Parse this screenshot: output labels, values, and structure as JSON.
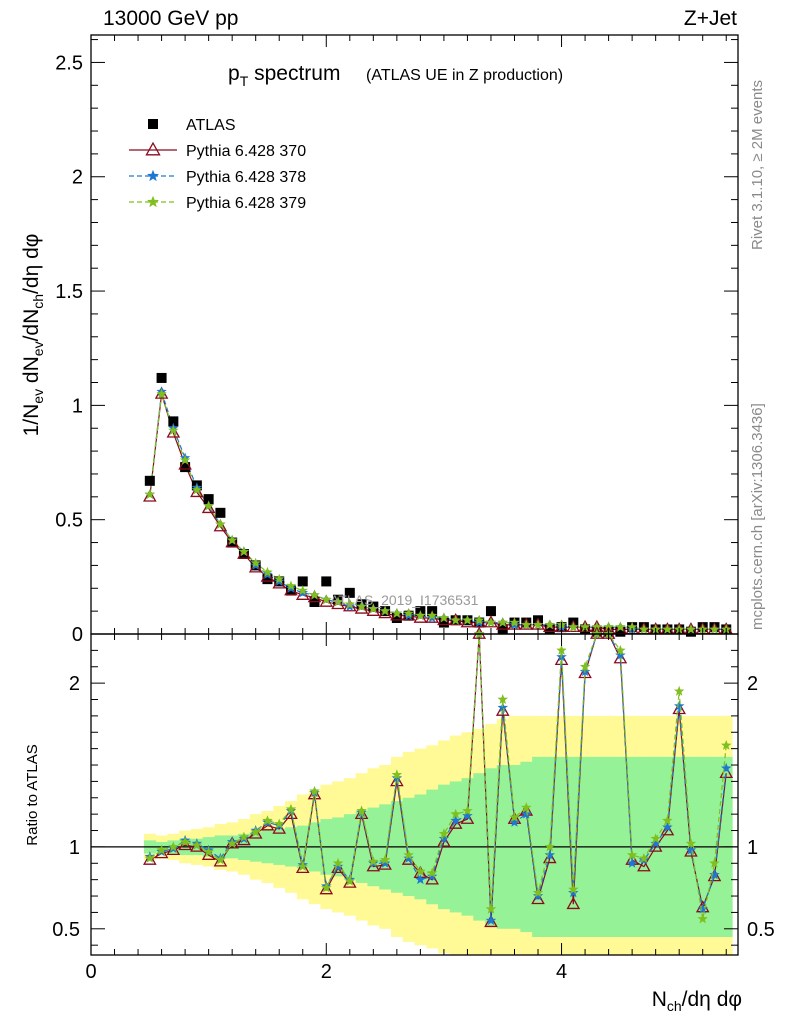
{
  "header": {
    "left": "13000 GeV pp",
    "right": "Z+Jet"
  },
  "plot_title": {
    "main_base": "p",
    "main_sub": "T",
    "main_rest": " spectrum",
    "paren": "(ATLAS UE in Z production)"
  },
  "side_text": {
    "top": "Rivet 3.1.10, ≥ 2M events",
    "bottom": "mcplots.cern.ch [arXiv:1306.3436]"
  },
  "watermark": "ATLAS_2019_I1736531",
  "axes": {
    "ylabel_main": "1/N_ev dN_ev/dN_ch/dη dφ",
    "ylabel_ratio": "Ratio to ATLAS",
    "xlabel": "N_ch/dη dφ"
  },
  "legend": [
    {
      "label": "ATLAS",
      "color": "#000000",
      "marker": "square"
    },
    {
      "label": "Pythia 6.428 370",
      "color": "#8b0a1e",
      "marker": "triangle",
      "dash": "solid"
    },
    {
      "label": "Pythia 6.428 378",
      "color": "#1f77d4",
      "marker": "star",
      "dash": "dashed"
    },
    {
      "label": "Pythia 6.428 379",
      "color": "#7fbf1e",
      "marker": "star",
      "dash": "dashed"
    }
  ],
  "chart_data": [
    {
      "type": "scatter",
      "panel": "main",
      "xlim": [
        0,
        5.5
      ],
      "ylim": [
        0,
        2.62
      ],
      "x_ticks": [
        0,
        2,
        4
      ],
      "y_ticks": [
        0,
        0.5,
        1,
        1.5,
        2,
        2.5
      ],
      "x": [
        0.5,
        0.6,
        0.7,
        0.8,
        0.9,
        1.0,
        1.1,
        1.2,
        1.3,
        1.4,
        1.5,
        1.6,
        1.7,
        1.8,
        1.9,
        2.0,
        2.1,
        2.2,
        2.3,
        2.4,
        2.5,
        2.6,
        2.7,
        2.8,
        2.9,
        3.0,
        3.1,
        3.2,
        3.3,
        3.4,
        3.5,
        3.6,
        3.7,
        3.8,
        3.9,
        4.0,
        4.1,
        4.2,
        4.3,
        4.4,
        4.5,
        4.6,
        4.7,
        4.8,
        4.9,
        5.0,
        5.1,
        5.2,
        5.3,
        5.4
      ],
      "series": [
        {
          "name": "ATLAS",
          "values": [
            0.67,
            1.12,
            0.93,
            0.73,
            0.65,
            0.59,
            0.53,
            0.4,
            0.35,
            0.3,
            0.24,
            0.23,
            0.19,
            0.23,
            0.14,
            0.23,
            0.15,
            0.18,
            0.13,
            0.12,
            0.1,
            0.07,
            0.08,
            0.1,
            0.1,
            0.05,
            0.06,
            0.06,
            0.05,
            0.1,
            0.02,
            0.05,
            0.05,
            0.06,
            0.02,
            0.03,
            0.05,
            0.02,
            0.01,
            0.01,
            0.01,
            0.03,
            0.03,
            0.02,
            0.02,
            0.02,
            0.01,
            0.03,
            0.03,
            0.02
          ]
        },
        {
          "name": "Pythia 6.428 370",
          "values": [
            0.6,
            1.05,
            0.88,
            0.74,
            0.62,
            0.55,
            0.47,
            0.4,
            0.35,
            0.29,
            0.25,
            0.22,
            0.19,
            0.17,
            0.16,
            0.14,
            0.13,
            0.12,
            0.11,
            0.1,
            0.09,
            0.08,
            0.08,
            0.07,
            0.07,
            0.06,
            0.06,
            0.05,
            0.05,
            0.05,
            0.04,
            0.04,
            0.04,
            0.04,
            0.03,
            0.03,
            0.03,
            0.03,
            0.03,
            0.02,
            0.02,
            0.02,
            0.02,
            0.02,
            0.02,
            0.02,
            0.02,
            0.02,
            0.02,
            0.02
          ]
        },
        {
          "name": "Pythia 6.428 378",
          "values": [
            0.61,
            1.06,
            0.9,
            0.77,
            0.64,
            0.56,
            0.48,
            0.41,
            0.36,
            0.3,
            0.26,
            0.23,
            0.2,
            0.18,
            0.17,
            0.15,
            0.14,
            0.12,
            0.12,
            0.11,
            0.1,
            0.09,
            0.08,
            0.08,
            0.07,
            0.07,
            0.06,
            0.06,
            0.05,
            0.05,
            0.05,
            0.04,
            0.04,
            0.04,
            0.04,
            0.03,
            0.03,
            0.03,
            0.03,
            0.03,
            0.03,
            0.02,
            0.02,
            0.02,
            0.02,
            0.02,
            0.02,
            0.02,
            0.02,
            0.02
          ]
        },
        {
          "name": "Pythia 6.428 379",
          "values": [
            0.61,
            1.05,
            0.89,
            0.76,
            0.63,
            0.56,
            0.48,
            0.41,
            0.36,
            0.31,
            0.27,
            0.24,
            0.21,
            0.19,
            0.17,
            0.15,
            0.14,
            0.13,
            0.12,
            0.11,
            0.1,
            0.09,
            0.09,
            0.08,
            0.08,
            0.07,
            0.06,
            0.06,
            0.06,
            0.05,
            0.05,
            0.05,
            0.04,
            0.04,
            0.04,
            0.04,
            0.03,
            0.03,
            0.03,
            0.03,
            0.03,
            0.03,
            0.02,
            0.02,
            0.02,
            0.02,
            0.02,
            0.02,
            0.02,
            0.02
          ]
        }
      ]
    },
    {
      "type": "line",
      "panel": "ratio",
      "xlim": [
        0,
        5.5
      ],
      "ylim": [
        0.34,
        2.3
      ],
      "x_ticks": [
        0,
        2,
        4
      ],
      "y_ticks": [
        0.5,
        1,
        2
      ],
      "reference_line": 1,
      "x": [
        0.5,
        0.6,
        0.7,
        0.8,
        0.9,
        1.0,
        1.1,
        1.2,
        1.3,
        1.4,
        1.5,
        1.6,
        1.7,
        1.8,
        1.9,
        2.0,
        2.1,
        2.2,
        2.3,
        2.4,
        2.5,
        2.6,
        2.7,
        2.8,
        2.9,
        3.0,
        3.1,
        3.2,
        3.3,
        3.4,
        3.5,
        3.6,
        3.7,
        3.8,
        3.9,
        4.0,
        4.1,
        4.2,
        4.3,
        4.4,
        4.5,
        4.6,
        4.7,
        4.8,
        4.9,
        5.0,
        5.1,
        5.2,
        5.3,
        5.4
      ],
      "band_green_halfwidth": [
        0.04,
        0.03,
        0.04,
        0.05,
        0.05,
        0.06,
        0.07,
        0.07,
        0.08,
        0.09,
        0.1,
        0.11,
        0.12,
        0.13,
        0.15,
        0.17,
        0.18,
        0.2,
        0.22,
        0.24,
        0.26,
        0.28,
        0.3,
        0.32,
        0.35,
        0.38,
        0.4,
        0.42,
        0.45,
        0.48,
        0.5,
        0.5,
        0.52,
        0.55,
        0.55,
        0.55,
        0.55,
        0.55,
        0.55,
        0.55,
        0.55,
        0.55,
        0.55,
        0.55,
        0.55,
        0.55,
        0.55,
        0.55,
        0.55,
        0.55
      ],
      "band_yellow_halfwidth": [
        0.08,
        0.07,
        0.08,
        0.1,
        0.11,
        0.12,
        0.14,
        0.15,
        0.17,
        0.2,
        0.22,
        0.25,
        0.28,
        0.32,
        0.35,
        0.38,
        0.4,
        0.42,
        0.45,
        0.48,
        0.5,
        0.55,
        0.58,
        0.6,
        0.62,
        0.65,
        0.68,
        0.7,
        0.72,
        0.75,
        0.78,
        0.8,
        0.8,
        0.8,
        0.8,
        0.8,
        0.8,
        0.8,
        0.8,
        0.8,
        0.8,
        0.8,
        0.8,
        0.8,
        0.8,
        0.8,
        0.8,
        0.8,
        0.8,
        0.8
      ],
      "series": [
        {
          "name": "Pythia 6.428 370",
          "values": [
            0.92,
            0.96,
            0.98,
            1.01,
            1.0,
            0.95,
            0.91,
            1.02,
            1.04,
            1.08,
            1.13,
            1.11,
            1.2,
            0.87,
            1.32,
            0.74,
            0.87,
            0.78,
            1.2,
            0.88,
            0.89,
            1.4,
            0.92,
            0.84,
            0.8,
            1.03,
            1.14,
            1.17,
            2.3,
            0.54,
            1.83,
            1.17,
            1.22,
            0.68,
            0.93,
            2.14,
            0.65,
            2.06,
            2.3,
            2.3,
            2.15,
            0.92,
            0.88,
            1.0,
            1.1,
            1.84,
            0.97,
            0.63,
            0.82,
            1.45
          ]
        },
        {
          "name": "Pythia 6.428 378",
          "values": [
            0.94,
            0.97,
            0.99,
            1.04,
            1.02,
            0.98,
            0.93,
            1.03,
            1.05,
            1.1,
            1.15,
            1.13,
            1.22,
            0.89,
            1.33,
            0.76,
            0.88,
            0.8,
            1.21,
            0.9,
            0.9,
            1.42,
            0.93,
            0.8,
            0.82,
            1.05,
            1.16,
            1.19,
            2.3,
            0.55,
            1.85,
            1.15,
            1.2,
            0.7,
            0.95,
            2.16,
            0.72,
            2.07,
            2.3,
            2.3,
            2.17,
            0.9,
            0.92,
            1.02,
            1.12,
            1.86,
            0.98,
            0.62,
            0.83,
            1.48
          ]
        },
        {
          "name": "Pythia 6.428 379",
          "values": [
            0.93,
            0.98,
            1.0,
            1.03,
            1.01,
            0.97,
            0.92,
            1.02,
            1.06,
            1.09,
            1.16,
            1.14,
            1.23,
            0.88,
            1.34,
            0.75,
            0.9,
            0.79,
            1.22,
            0.91,
            0.92,
            1.44,
            0.95,
            0.85,
            0.84,
            1.08,
            1.2,
            1.22,
            2.3,
            0.62,
            1.9,
            1.18,
            1.24,
            0.72,
            1.0,
            2.2,
            0.74,
            2.1,
            2.3,
            2.3,
            2.2,
            0.95,
            0.93,
            1.05,
            1.16,
            1.95,
            1.02,
            0.56,
            0.9,
            1.62
          ]
        }
      ]
    }
  ]
}
